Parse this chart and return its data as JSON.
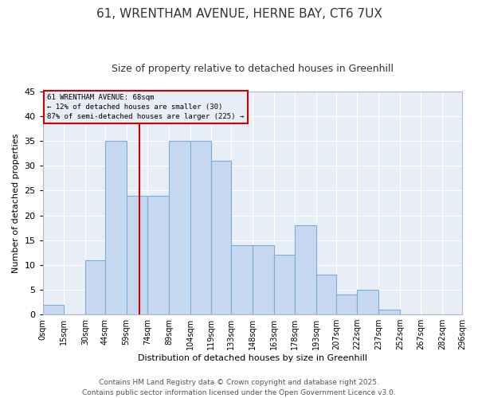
{
  "title_line1": "61, WRENTHAM AVENUE, HERNE BAY, CT6 7UX",
  "title_line2": "Size of property relative to detached houses in Greenhill",
  "xlabel": "Distribution of detached houses by size in Greenhill",
  "ylabel": "Number of detached properties",
  "bar_color": "#c5d8f0",
  "bar_edge_color": "#7aadd4",
  "background_color": "#e8eef6",
  "grid_color": "#ffffff",
  "annotation_line_color": "#cc0000",
  "annotation_box_color": "#cc0000",
  "annotation_text": "61 WRENTHAM AVENUE: 68sqm\n← 12% of detached houses are smaller (30)\n87% of semi-detached houses are larger (225) →",
  "property_value": 68,
  "bin_edges": [
    0,
    15,
    30,
    44,
    59,
    74,
    89,
    104,
    119,
    133,
    148,
    163,
    178,
    193,
    207,
    222,
    237,
    252,
    267,
    282,
    296
  ],
  "bin_labels": [
    "0sqm",
    "15sqm",
    "30sqm",
    "44sqm",
    "59sqm",
    "74sqm",
    "89sqm",
    "104sqm",
    "119sqm",
    "133sqm",
    "148sqm",
    "163sqm",
    "178sqm",
    "193sqm",
    "207sqm",
    "222sqm",
    "237sqm",
    "252sqm",
    "267sqm",
    "282sqm",
    "296sqm"
  ],
  "counts": [
    2,
    0,
    11,
    35,
    24,
    24,
    35,
    35,
    31,
    14,
    14,
    12,
    18,
    8,
    4,
    5,
    1,
    0,
    0,
    0
  ],
  "ylim": [
    0,
    45
  ],
  "yticks": [
    0,
    5,
    10,
    15,
    20,
    25,
    30,
    35,
    40,
    45
  ],
  "footer_line1": "Contains HM Land Registry data © Crown copyright and database right 2025.",
  "footer_line2": "Contains public sector information licensed under the Open Government Licence v3.0.",
  "title_fontsize": 11,
  "subtitle_fontsize": 9,
  "footer_fontsize": 6.5
}
